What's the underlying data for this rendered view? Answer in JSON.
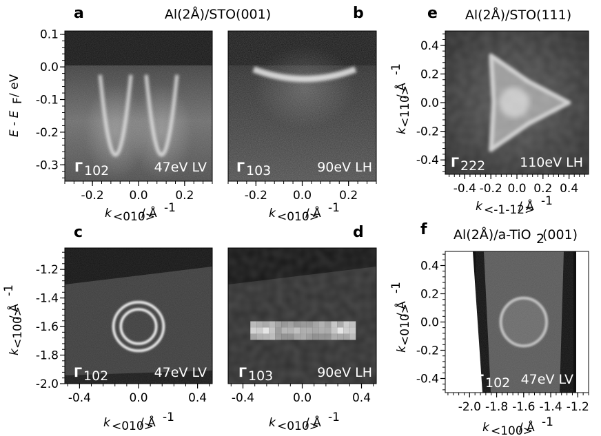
{
  "figure": {
    "colors": {
      "background": "#ffffff",
      "frame": "#000000",
      "label_inlay": "#ffffff"
    }
  },
  "chart_data": [
    {
      "id": "a",
      "type": "heatmap",
      "letter": "a",
      "title": "Al(2Å)/STO(001)",
      "xlabel": {
        "main": "k",
        "sub": "<010>",
        "unit": "/ Å",
        "sup": "-1"
      },
      "ylabel": {
        "main": "E - E",
        "sub": "F",
        "unit": "/ eV"
      },
      "xlim": [
        -0.32,
        0.32
      ],
      "ylim": [
        -0.35,
        0.11
      ],
      "xticks": [
        -0.2,
        0.0,
        0.2
      ],
      "xtick_labels": [
        "-0.2",
        "0.0",
        "0.2"
      ],
      "yticks": [
        0.1,
        0.0,
        -0.1,
        -0.2,
        -0.3
      ],
      "ytick_labels": [
        "0.1",
        "0.0",
        "-0.1",
        "-0.2",
        "-0.3"
      ],
      "label_gamma": "Γ",
      "label_gamma_sub": "102",
      "label_cond": "47eV LV",
      "features": [
        {
          "kind": "parabola",
          "center_k": -0.1,
          "kf": 0.07,
          "bottom": -0.27
        },
        {
          "kind": "parabola",
          "center_k": 0.1,
          "kf": 0.07,
          "bottom": -0.27
        }
      ]
    },
    {
      "id": "b",
      "type": "heatmap",
      "letter": "b",
      "xlabel": {
        "main": "k",
        "sub": "<010>",
        "unit": "/ Å",
        "sup": "-1"
      },
      "xlim": [
        -0.32,
        0.32
      ],
      "ylim": [
        -0.35,
        0.11
      ],
      "xticks": [
        -0.2,
        0.0,
        0.2
      ],
      "xtick_labels": [
        "-0.2",
        "0.0",
        "0.2"
      ],
      "label_gamma": "Γ",
      "label_gamma_sub": "103",
      "label_cond": "90eV LH",
      "features": [
        {
          "kind": "flat_band",
          "k_from": -0.21,
          "k_to": 0.23,
          "energy": -0.02
        }
      ]
    },
    {
      "id": "c",
      "type": "heatmap",
      "letter": "c",
      "xlabel": {
        "main": "k",
        "sub": "<010>",
        "unit": "/ Å",
        "sup": "-1"
      },
      "ylabel": {
        "main": "k",
        "sub": "<100>",
        "unit": "/ Å",
        "sup": "-1"
      },
      "xlim": [
        -0.5,
        0.5
      ],
      "ylim": [
        -2.0,
        -1.05
      ],
      "xticks": [
        -0.4,
        0.0,
        0.4
      ],
      "xtick_labels": [
        "-0.4",
        "0.0",
        "0.4"
      ],
      "yticks": [
        -1.2,
        -1.4,
        -1.6,
        -1.8,
        -2.0
      ],
      "ytick_labels": [
        "-1.2",
        "-1.4",
        "-1.6",
        "-1.8",
        "-2.0"
      ],
      "label_gamma": "Γ",
      "label_gamma_sub": "102",
      "label_cond": "47eV LV",
      "features": [
        {
          "kind": "ring",
          "center": [
            0.0,
            -1.6
          ],
          "radius": 0.17
        },
        {
          "kind": "ring",
          "center": [
            0.0,
            -1.6
          ],
          "radius": 0.12
        }
      ]
    },
    {
      "id": "d",
      "type": "heatmap",
      "letter": "d",
      "xlabel": {
        "main": "k",
        "sub": "<010>",
        "unit": "/ Å",
        "sup": "-1"
      },
      "xlim": [
        -0.5,
        0.5
      ],
      "ylim": [
        -2.0,
        -1.05
      ],
      "xticks": [
        -0.4,
        0.0,
        0.4
      ],
      "xtick_labels": [
        "-0.4",
        "0.0",
        "0.4"
      ],
      "label_gamma": "Γ",
      "label_gamma_sub": "103",
      "label_cond": "90eV LH",
      "features": [
        {
          "kind": "bar",
          "center": [
            0.0,
            -1.6
          ],
          "half_width": 0.35,
          "half_height": 0.08
        }
      ]
    },
    {
      "id": "e",
      "type": "heatmap",
      "letter": "e",
      "title": "Al(2Å)/STO(111)",
      "xlabel": {
        "main": "k",
        "sub": "<-1-12>",
        "unit": "/ Å",
        "sup": "-1"
      },
      "ylabel": {
        "main": "k",
        "sub": "<110>",
        "unit": "/ Å",
        "sup": "-1"
      },
      "xlim": [
        -0.55,
        0.55
      ],
      "ylim": [
        -0.5,
        0.5
      ],
      "xticks": [
        -0.4,
        -0.2,
        0.0,
        0.2,
        0.4
      ],
      "xtick_labels": [
        "-0.4",
        "-0.2",
        "0.0",
        "0.2",
        "0.4"
      ],
      "yticks": [
        0.4,
        0.2,
        0.0,
        -0.2,
        -0.4
      ],
      "ytick_labels": [
        "0.4",
        "0.2",
        "0.0",
        "-0.2",
        "-0.4"
      ],
      "label_gamma": "Γ",
      "label_gamma_sub": "222",
      "label_cond": "110eV LH",
      "features": [
        {
          "kind": "star",
          "center": [
            0.0,
            0.0
          ],
          "outer_radius": 0.38,
          "inner_radius": 0.17,
          "points": 3
        }
      ]
    },
    {
      "id": "f",
      "type": "heatmap",
      "letter": "f",
      "title": {
        "main": "Al(2Å)/a-TiO",
        "sub": "2",
        "tail": "(001)"
      },
      "xlabel": {
        "main": "k",
        "sub": "<100>",
        "unit": "/ Å",
        "sup": "-1"
      },
      "ylabel": {
        "main": "k",
        "sub": "<010>",
        "unit": "/ Å",
        "sup": "-1"
      },
      "xlim": [
        -2.18,
        -1.12
      ],
      "ylim": [
        -0.5,
        0.5
      ],
      "xticks": [
        -2.0,
        -1.8,
        -1.6,
        -1.4,
        -1.2
      ],
      "xtick_labels": [
        "-2.0",
        "-1.8",
        "-1.6",
        "-1.4",
        "-1.2"
      ],
      "yticks": [
        0.4,
        0.2,
        0.0,
        -0.2,
        -0.4
      ],
      "ytick_labels": [
        "0.4",
        "0.2",
        "0.0",
        "-0.2",
        "-0.4"
      ],
      "label_gamma": "Γ",
      "label_gamma_sub": "102",
      "label_cond": "47eV LV",
      "features": [
        {
          "kind": "ring",
          "center": [
            -1.6,
            0.0
          ],
          "radius": 0.17
        }
      ]
    }
  ]
}
